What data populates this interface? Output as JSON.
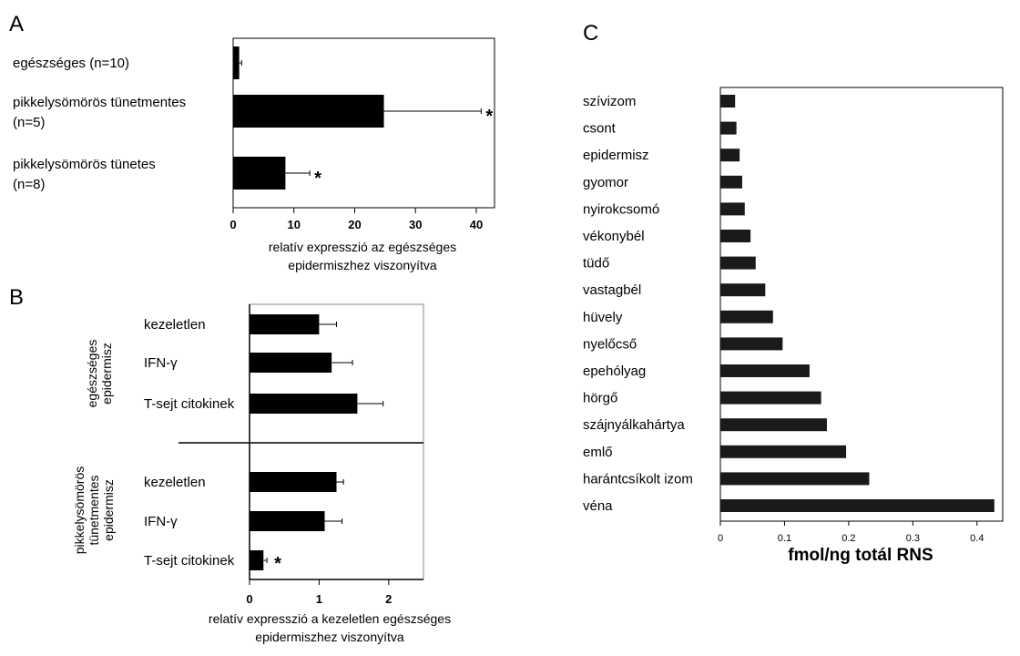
{
  "chart_data": [
    {
      "panel": "A",
      "type": "bar",
      "orientation": "horizontal",
      "categories": [
        [
          "egészséges (n=10)"
        ],
        [
          "pikkelysömörös tünetmentes",
          "(n=5)"
        ],
        [
          "pikkelysömörös tünetes",
          "(n=8)"
        ]
      ],
      "values": [
        1,
        24.8,
        8.6
      ],
      "errors": [
        0.4,
        16,
        4
      ],
      "significant": [
        false,
        true,
        true
      ],
      "significance_mark": "*",
      "xlim": [
        0,
        43
      ],
      "xticks": [
        "0",
        "10",
        "20",
        "30",
        "40"
      ],
      "xtick_values": [
        0,
        10,
        20,
        30,
        40
      ],
      "xlabel": [
        "relatív expresszió az egészséges",
        "epidermiszhez viszonyítva"
      ]
    },
    {
      "panel": "B",
      "type": "bar",
      "orientation": "horizontal",
      "groups": [
        {
          "name": [
            "egészséges",
            "epidermisz"
          ],
          "categories": [
            "kezeletlen",
            "IFN-γ",
            "T-sejt citokinek"
          ],
          "values": [
            1.0,
            1.18,
            1.55
          ],
          "errors": [
            0.25,
            0.3,
            0.37
          ],
          "significant": [
            false,
            false,
            false
          ]
        },
        {
          "name": [
            "pikkelysömörös",
            "tünetmentes",
            "epidermisz"
          ],
          "categories": [
            "kezeletlen",
            "IFN-γ",
            "T-sejt citokinek"
          ],
          "values": [
            1.25,
            1.08,
            0.2
          ],
          "errors": [
            0.1,
            0.25,
            0.05
          ],
          "significant": [
            false,
            false,
            true
          ]
        }
      ],
      "significance_mark": "*",
      "xlim": [
        0,
        2.5
      ],
      "xticks": [
        "0",
        "1",
        "2"
      ],
      "xtick_values": [
        0,
        1,
        2
      ],
      "xlabel": [
        "relatív expresszió a kezeletlen egészséges",
        "epidermiszhez viszonyítva"
      ]
    },
    {
      "panel": "C",
      "type": "bar",
      "orientation": "horizontal",
      "categories": [
        "szívizom",
        "csont",
        "epidermisz",
        "gyomor",
        "nyirokcsomó",
        "vékonybél",
        "tüdő",
        "vastagbél",
        "hüvely",
        "nyelőcső",
        "epehólyag",
        "hörgő",
        "szájnyálkahártya",
        "emlő",
        "harántcsíkolt izom",
        "véna"
      ],
      "values": [
        0.023,
        0.025,
        0.03,
        0.034,
        0.038,
        0.047,
        0.055,
        0.07,
        0.082,
        0.097,
        0.139,
        0.157,
        0.166,
        0.196,
        0.232,
        0.427
      ],
      "xlim": [
        0,
        0.44
      ],
      "xticks": [
        "0",
        "0.1",
        "0.2",
        "0.3",
        "0.4"
      ],
      "xtick_values": [
        0,
        0.1,
        0.2,
        0.3,
        0.4
      ],
      "xlabel": "fmol/ng totál RNS"
    }
  ]
}
